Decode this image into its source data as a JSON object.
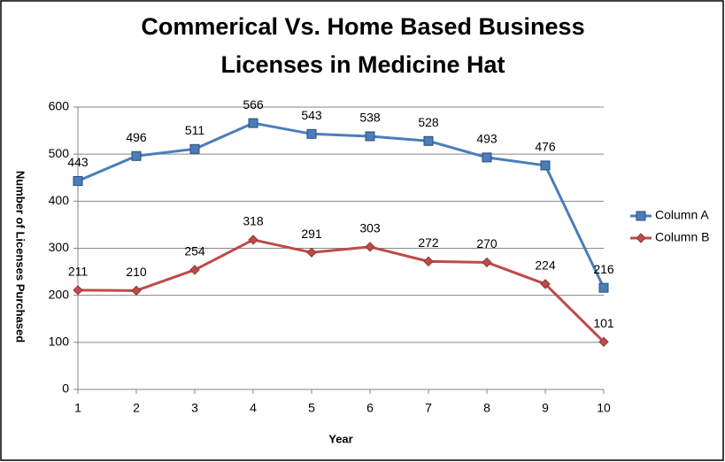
{
  "chart_data": {
    "type": "line",
    "title": [
      "Commerical Vs. Home Based Business",
      "Licenses in Medicine Hat"
    ],
    "xlabel": "Year",
    "ylabel": "Number of Licenses Purchased",
    "x": [
      1,
      2,
      3,
      4,
      5,
      6,
      7,
      8,
      9,
      10
    ],
    "series": [
      {
        "name": "Column A",
        "color": "#4a7ebb",
        "marker": "square",
        "values": [
          443,
          496,
          511,
          566,
          543,
          538,
          528,
          493,
          476,
          216
        ]
      },
      {
        "name": "Column B",
        "color": "#be4b48",
        "marker": "diamond",
        "values": [
          211,
          210,
          254,
          318,
          291,
          303,
          272,
          270,
          224,
          101
        ]
      }
    ],
    "xlim": [
      1,
      10
    ],
    "xticks": [
      1,
      2,
      3,
      4,
      5,
      6,
      7,
      8,
      9,
      10
    ],
    "ylim": [
      0,
      600
    ],
    "yticks": [
      0,
      100,
      200,
      300,
      400,
      500,
      600
    ],
    "grid": true,
    "legend": "right",
    "data_labels": true
  }
}
